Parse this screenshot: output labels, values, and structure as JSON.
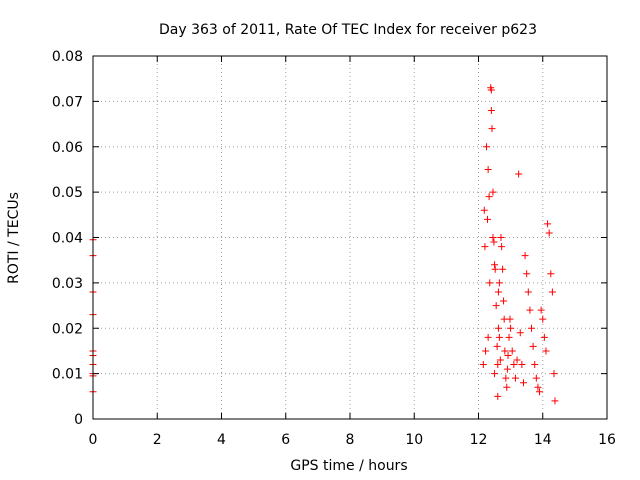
{
  "chart_data": {
    "type": "scatter",
    "title": "Day 363 of 2011, Rate Of TEC Index for receiver p623",
    "xlabel": "GPS time / hours",
    "ylabel": "ROTI / TECUs",
    "xlim": [
      0,
      16
    ],
    "ylim": [
      0,
      0.08
    ],
    "xticks": [
      0,
      2,
      4,
      6,
      8,
      10,
      12,
      14,
      16
    ],
    "xtick_labels": [
      "0",
      "2",
      "4",
      "6",
      "8",
      "10",
      "12",
      "14",
      "16"
    ],
    "yticks": [
      0,
      0.01,
      0.02,
      0.03,
      0.04,
      0.05,
      0.06,
      0.07,
      0.08
    ],
    "ytick_labels": [
      "0",
      "0.01",
      "0.02",
      "0.03",
      "0.04",
      "0.05",
      "0.06",
      "0.07",
      "0.08"
    ],
    "grid": true,
    "marker": "+",
    "marker_color": "#ff0000",
    "series": [
      {
        "name": "ROTI",
        "x": [
          0.0,
          0.0,
          0.0,
          0.0,
          0.0,
          0.0,
          0.0,
          0.0,
          0.0,
          0.0,
          12.15,
          12.18,
          12.2,
          12.22,
          12.25,
          12.28,
          12.3,
          12.3,
          12.33,
          12.35,
          12.38,
          12.4,
          12.4,
          12.42,
          12.45,
          12.45,
          12.48,
          12.5,
          12.5,
          12.52,
          12.55,
          12.58,
          12.6,
          12.6,
          12.62,
          12.62,
          12.65,
          12.65,
          12.68,
          12.7,
          12.72,
          12.75,
          12.78,
          12.8,
          12.82,
          12.85,
          12.88,
          12.9,
          12.92,
          12.95,
          12.98,
          13.0,
          13.05,
          13.1,
          13.15,
          13.2,
          13.25,
          13.3,
          13.35,
          13.4,
          13.45,
          13.5,
          13.55,
          13.6,
          13.65,
          13.7,
          13.75,
          13.8,
          13.85,
          13.9,
          13.95,
          14.0,
          14.05,
          14.1,
          14.15,
          14.2,
          14.25,
          14.3,
          14.35,
          14.38
        ],
        "y": [
          0.0395,
          0.036,
          0.028,
          0.023,
          0.015,
          0.014,
          0.012,
          0.01,
          0.0095,
          0.006,
          0.012,
          0.046,
          0.038,
          0.015,
          0.06,
          0.044,
          0.055,
          0.018,
          0.049,
          0.03,
          0.073,
          0.0725,
          0.068,
          0.064,
          0.05,
          0.04,
          0.039,
          0.034,
          0.01,
          0.033,
          0.025,
          0.016,
          0.012,
          0.005,
          0.02,
          0.028,
          0.03,
          0.018,
          0.013,
          0.04,
          0.038,
          0.033,
          0.026,
          0.022,
          0.015,
          0.009,
          0.007,
          0.011,
          0.014,
          0.018,
          0.022,
          0.02,
          0.015,
          0.012,
          0.009,
          0.013,
          0.054,
          0.019,
          0.012,
          0.008,
          0.036,
          0.032,
          0.028,
          0.024,
          0.02,
          0.016,
          0.012,
          0.009,
          0.007,
          0.006,
          0.024,
          0.022,
          0.018,
          0.015,
          0.043,
          0.041,
          0.032,
          0.028,
          0.01,
          0.004
        ]
      }
    ]
  }
}
